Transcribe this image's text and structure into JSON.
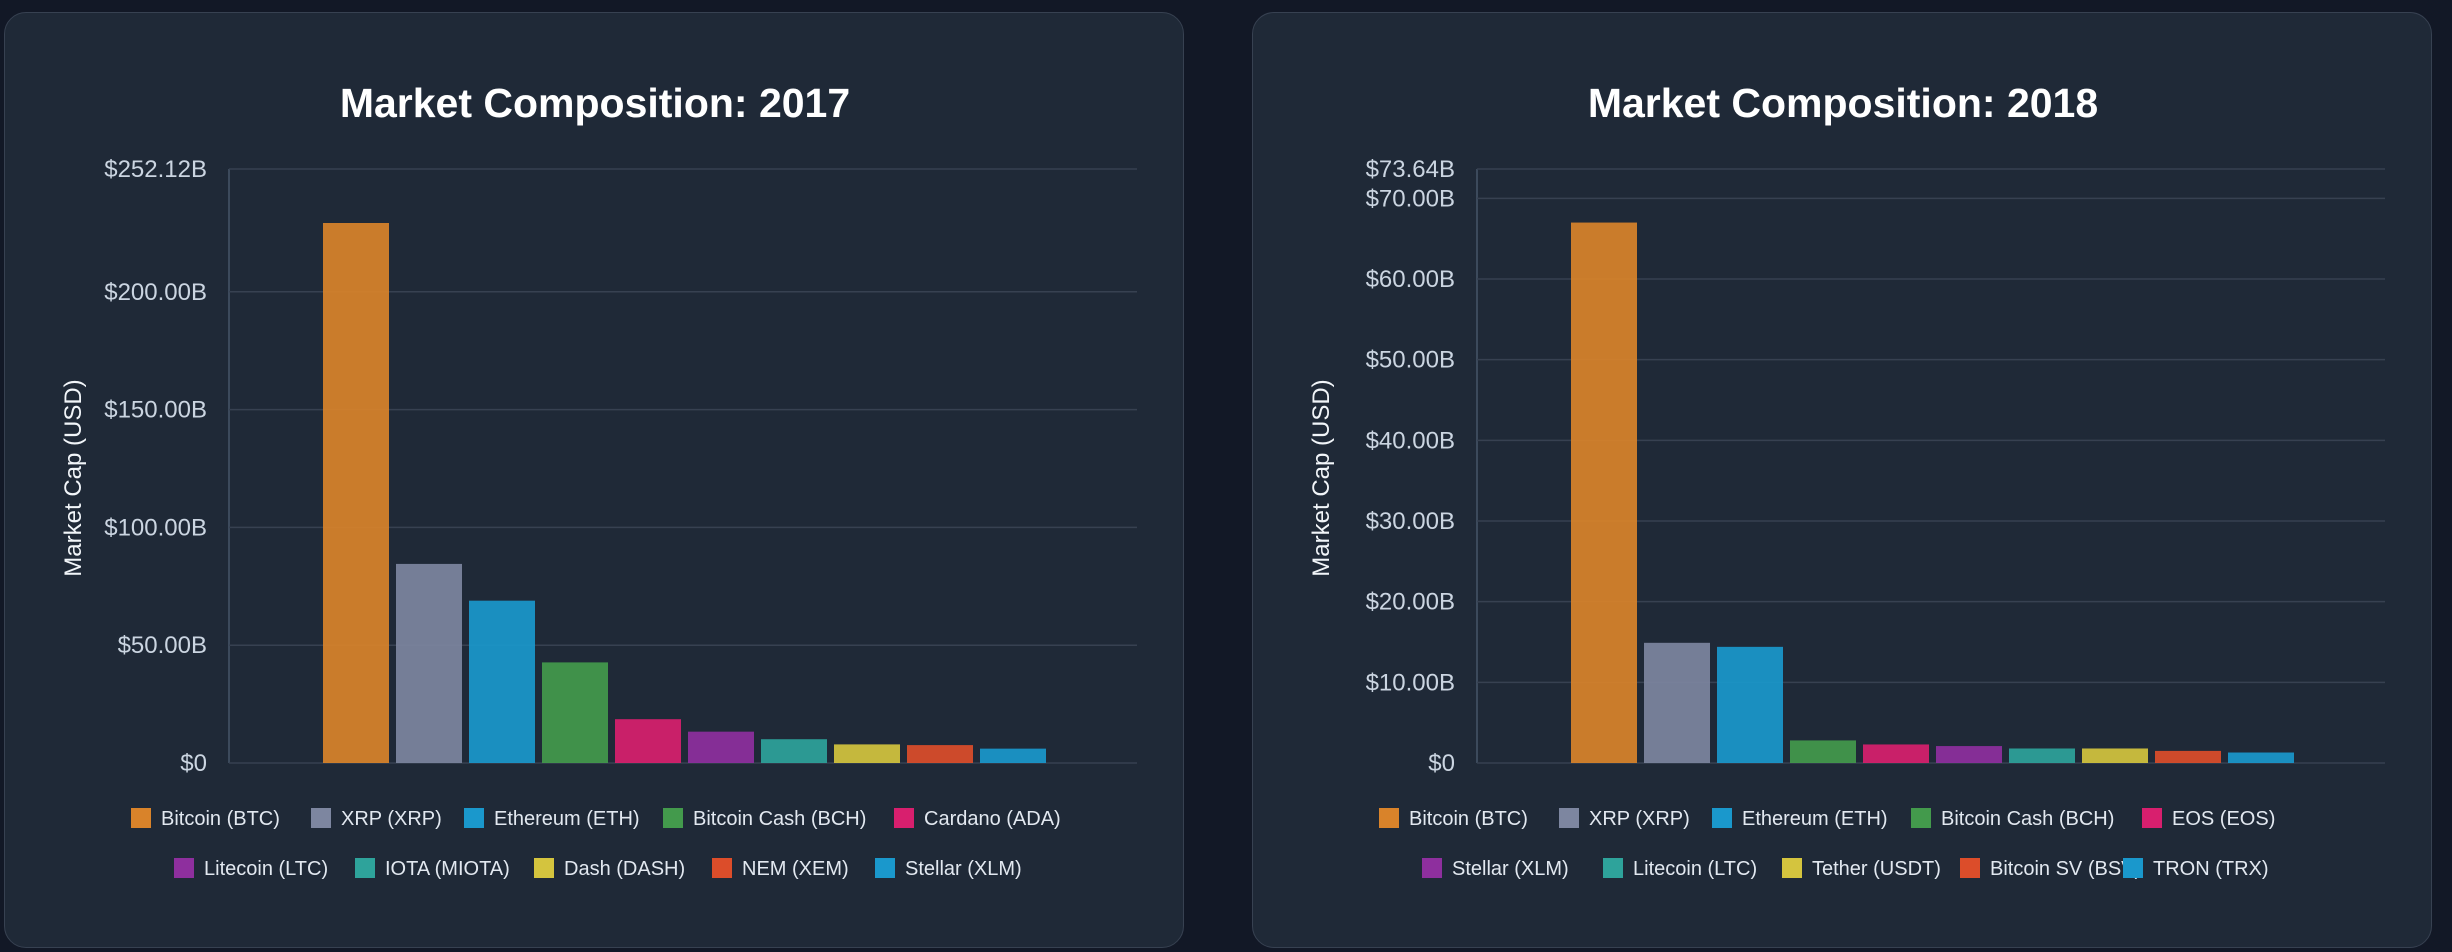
{
  "chart_data": [
    {
      "type": "bar",
      "title": "Market Composition: 2017",
      "ylabel": "Market Cap (USD)",
      "ylim": [
        0,
        252.12
      ],
      "yticks": [
        0,
        50,
        100,
        150,
        200,
        252.12
      ],
      "ytick_labels": [
        "$0",
        "$50.00B",
        "$100.00B",
        "$150.00B",
        "$200.00B",
        "$252.12B"
      ],
      "grid": true,
      "legend_position": "bottom",
      "categories": [
        "Bitcoin (BTC)",
        "XRP (XRP)",
        "Ethereum (ETH)",
        "Bitcoin Cash (BCH)",
        "Cardano (ADA)",
        "Litecoin (LTC)",
        "IOTA (MIOTA)",
        "Dash (DASH)",
        "NEM (XEM)",
        "Stellar (XLM)"
      ],
      "values": [
        229.2,
        84.5,
        68.9,
        42.7,
        18.6,
        13.3,
        10.1,
        7.9,
        7.6,
        6.1
      ],
      "colors": [
        "#d9832a",
        "#7d86a0",
        "#1a98cc",
        "#439a4c",
        "#d81f6e",
        "#8e2f9e",
        "#2ea39b",
        "#d4c43e",
        "#dc4d2a",
        "#1a98cc"
      ]
    },
    {
      "type": "bar",
      "title": "Market Composition: 2018",
      "ylabel": "Market Cap (USD)",
      "ylim": [
        0,
        73.64
      ],
      "yticks": [
        0,
        10,
        20,
        30,
        40,
        50,
        60,
        70,
        73.64
      ],
      "ytick_labels": [
        "$0",
        "$10.00B",
        "$20.00B",
        "$30.00B",
        "$40.00B",
        "$50.00B",
        "$60.00B",
        "$70.00B",
        "$73.64B"
      ],
      "grid": true,
      "legend_position": "bottom",
      "categories": [
        "Bitcoin (BTC)",
        "XRP (XRP)",
        "Ethereum (ETH)",
        "Bitcoin Cash (BCH)",
        "EOS (EOS)",
        "Stellar (XLM)",
        "Litecoin (LTC)",
        "Tether (USDT)",
        "Bitcoin SV (BSV)",
        "TRON (TRX)"
      ],
      "values": [
        67.0,
        14.9,
        14.4,
        2.8,
        2.3,
        2.1,
        1.8,
        1.8,
        1.5,
        1.3
      ],
      "colors": [
        "#d9832a",
        "#7d86a0",
        "#1a98cc",
        "#439a4c",
        "#d81f6e",
        "#8e2f9e",
        "#2ea39b",
        "#d4c43e",
        "#dc4d2a",
        "#1a98cc"
      ]
    }
  ]
}
